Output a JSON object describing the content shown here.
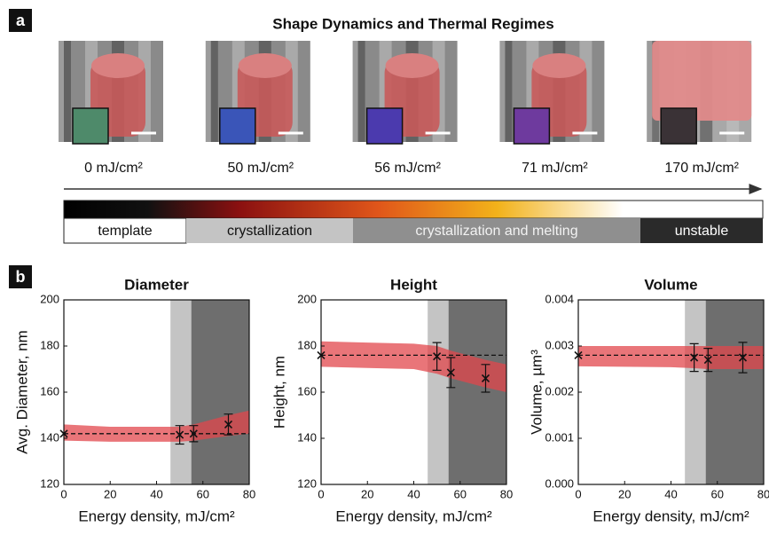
{
  "panel_a": {
    "letter": "a",
    "title": "Shape Dynamics and Thermal Regimes",
    "images": [
      {
        "label": "0 mJ/cm²",
        "inset_color": "#4e8a6a"
      },
      {
        "label": "50 mJ/cm²",
        "inset_color": "#3a55b8"
      },
      {
        "label": "56 mJ/cm²",
        "inset_color": "#4b3aae"
      },
      {
        "label": "71 mJ/cm²",
        "inset_color": "#6e3a9e"
      },
      {
        "label": "170 mJ/cm²",
        "inset_color": "#3a3236"
      }
    ],
    "regimes": [
      "template",
      "crystallization",
      "crystallization and melting",
      "unstable"
    ]
  },
  "panel_b": {
    "letter": "b"
  },
  "chart_data": [
    {
      "type": "scatter",
      "title": "Diameter",
      "xlabel": "Energy density, mJ/cm²",
      "ylabel": "Avg. Diameter, nm",
      "xlim": [
        0,
        80
      ],
      "xticks": [
        0,
        20,
        40,
        60,
        80
      ],
      "ylim": [
        120,
        200
      ],
      "yticks": [
        120,
        140,
        160,
        180,
        200
      ],
      "regions": [
        {
          "x0": 46,
          "x1": 55,
          "color": "#c4c4c4"
        },
        {
          "x0": 55,
          "x1": 80,
          "color": "#6e6e6e"
        }
      ],
      "band": {
        "x": [
          0,
          20,
          40,
          50,
          56,
          71,
          80
        ],
        "lower": [
          139,
          138.5,
          138.5,
          138.5,
          139,
          141,
          142
        ],
        "upper": [
          146,
          145,
          145,
          145,
          146,
          150,
          152
        ],
        "color": "#e2474c"
      },
      "reference": 142,
      "series": [
        {
          "x": [
            0,
            50,
            56,
            71
          ],
          "values": [
            142,
            141.5,
            142,
            146
          ],
          "errors": [
            0,
            4,
            3.5,
            4.5
          ],
          "color": "#111111"
        }
      ]
    },
    {
      "type": "scatter",
      "title": "Height",
      "xlabel": "Energy density, mJ/cm²",
      "ylabel": "Height, nm",
      "xlim": [
        0,
        80
      ],
      "xticks": [
        0,
        20,
        40,
        60,
        80
      ],
      "ylim": [
        120,
        200
      ],
      "yticks": [
        120,
        140,
        160,
        180,
        200
      ],
      "regions": [
        {
          "x0": 46,
          "x1": 55,
          "color": "#c4c4c4"
        },
        {
          "x0": 55,
          "x1": 80,
          "color": "#6e6e6e"
        }
      ],
      "band": {
        "x": [
          0,
          20,
          40,
          50,
          56,
          71,
          80
        ],
        "lower": [
          171,
          170.5,
          170,
          168,
          166,
          162,
          160
        ],
        "upper": [
          182,
          181.5,
          181,
          180,
          178,
          174,
          172
        ],
        "color": "#e2474c"
      },
      "reference": 176,
      "series": [
        {
          "x": [
            0,
            50,
            56,
            71
          ],
          "values": [
            176,
            175.5,
            168.5,
            166
          ],
          "errors": [
            0,
            6,
            6.5,
            6
          ],
          "color": "#111111"
        }
      ]
    },
    {
      "type": "scatter",
      "title": "Volume",
      "xlabel": "Energy density, mJ/cm²",
      "ylabel": "Volume, µm³",
      "xlim": [
        0,
        80
      ],
      "xticks": [
        0,
        20,
        40,
        60,
        80
      ],
      "ylim": [
        0,
        0.004
      ],
      "yticks": [
        {
          "value": 0,
          "label": "0.000"
        },
        0.001,
        0.002,
        0.003,
        0.004
      ],
      "regions": [
        {
          "x0": 46,
          "x1": 55,
          "color": "#c4c4c4"
        },
        {
          "x0": 55,
          "x1": 80,
          "color": "#6e6e6e"
        }
      ],
      "band": {
        "x": [
          0,
          20,
          40,
          50,
          56,
          71,
          80
        ],
        "lower": [
          0.00256,
          0.00255,
          0.00254,
          0.00252,
          0.0025,
          0.0025,
          0.0025
        ],
        "upper": [
          0.003,
          0.003,
          0.003,
          0.003,
          0.003,
          0.003,
          0.003
        ],
        "color": "#e2474c"
      },
      "reference": 0.0028,
      "series": [
        {
          "x": [
            0,
            50,
            56,
            71
          ],
          "values": [
            0.0028,
            0.00275,
            0.0027,
            0.00275
          ],
          "errors": [
            0,
            0.0003,
            0.00025,
            0.00033
          ],
          "color": "#111111"
        }
      ]
    }
  ]
}
